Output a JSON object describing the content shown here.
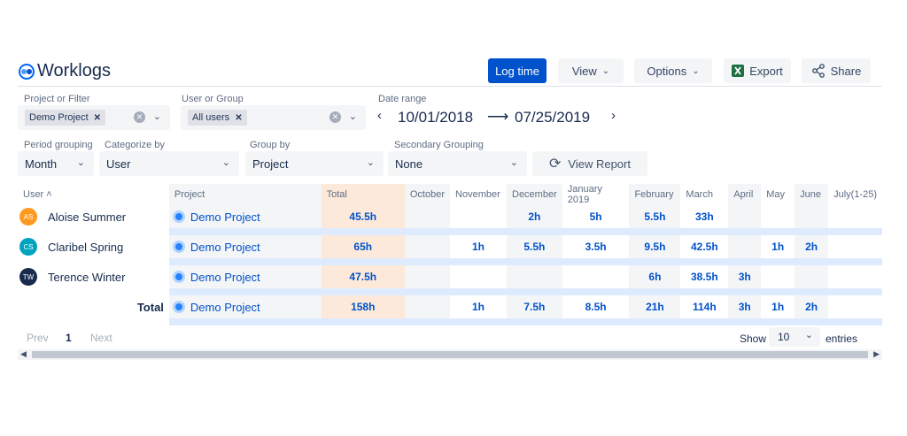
{
  "header": {
    "title": "Worklogs",
    "log_time": "Log time",
    "view": "View",
    "options": "Options",
    "export": "Export",
    "share": "Share"
  },
  "filters": {
    "project_label": "Project or Filter",
    "project_tag": "Demo Project",
    "user_label": "User or Group",
    "user_tag": "All users",
    "date_label": "Date range",
    "date_from": "10/01/2018",
    "date_arrow": "⟶",
    "date_to": "07/25/2019",
    "period_label": "Period grouping",
    "period_value": "Month",
    "categorize_label": "Categorize by",
    "categorize_value": "User",
    "groupby_label": "Group by",
    "groupby_value": "Project",
    "secondary_label": "Secondary Grouping",
    "secondary_value": "None",
    "view_report": "View Report"
  },
  "table": {
    "columns": [
      "User",
      "Project",
      "Total",
      "October",
      "November",
      "December",
      "January 2019",
      "February",
      "March",
      "April",
      "May",
      "June",
      "July(1-25)"
    ],
    "rows": [
      {
        "initials": "AS",
        "avatar_color": "#ff991f",
        "user": "Aloise Summer",
        "project": "Demo Project",
        "total": "45.5h",
        "values": [
          "",
          "",
          "2h",
          "5h",
          "5.5h",
          "33h",
          "",
          "",
          "",
          ""
        ]
      },
      {
        "initials": "CS",
        "avatar_color": "#00a3bf",
        "user": "Claribel Spring",
        "project": "Demo Project",
        "total": "65h",
        "values": [
          "",
          "1h",
          "5.5h",
          "3.5h",
          "9.5h",
          "42.5h",
          "",
          "1h",
          "2h",
          ""
        ]
      },
      {
        "initials": "TW",
        "avatar_color": "#172b4d",
        "user": "Terence Winter",
        "project": "Demo Project",
        "total": "47.5h",
        "values": [
          "",
          "",
          "",
          "",
          "6h",
          "38.5h",
          "3h",
          "",
          "",
          ""
        ]
      }
    ],
    "total_row": {
      "label": "Total",
      "project": "Demo Project",
      "total": "158h",
      "values": [
        "",
        "1h",
        "7.5h",
        "8.5h",
        "21h",
        "114h",
        "3h",
        "1h",
        "2h",
        ""
      ]
    }
  },
  "pagination": {
    "prev": "Prev",
    "page": "1",
    "next": "Next",
    "show": "Show",
    "per_page": "10",
    "entries": "entries"
  }
}
